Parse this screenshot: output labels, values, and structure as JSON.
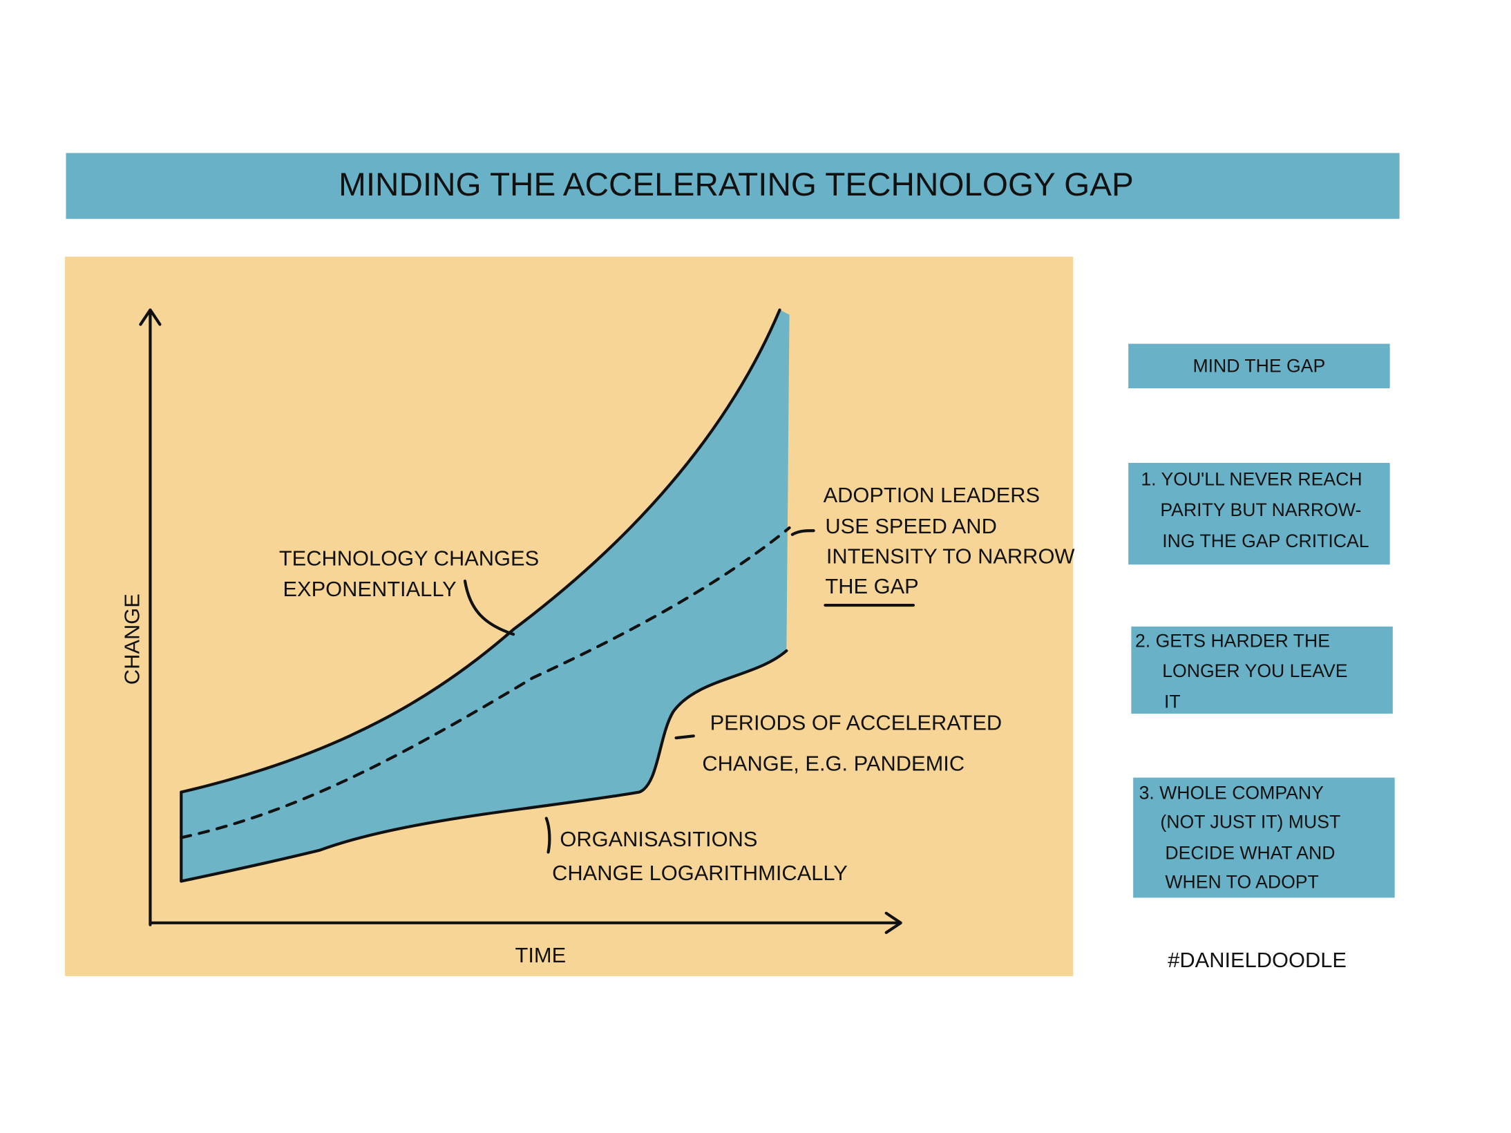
{
  "title": "MINDING THE ACCELERATING TECHNOLOGY GAP",
  "chart": {
    "y_axis_label": "CHANGE",
    "x_axis_label": "TIME",
    "annotations": [
      {
        "lines": [
          "TECHNOLOGY CHANGES",
          "EXPONENTIALLY"
        ]
      },
      {
        "lines": [
          "ADOPTION LEADERS",
          "USE SPEED AND",
          "INTENSITY TO NARROW",
          "THE GAP"
        ]
      },
      {
        "lines": [
          "PERIODS OF ACCELERATED",
          "CHANGE, E.G. PANDEMIC"
        ]
      },
      {
        "lines": [
          "ORGANISASITIONS",
          "CHANGE LOGARITHMICALLY"
        ]
      }
    ]
  },
  "sidebar": {
    "heading": "MIND THE GAP",
    "points": [
      {
        "lines": [
          "1. YOU'LL NEVER REACH",
          "PARITY BUT NARROW-",
          "ING THE GAP CRITICAL"
        ]
      },
      {
        "lines": [
          "2. GETS HARDER THE",
          "LONGER YOU LEAVE",
          "IT"
        ]
      },
      {
        "lines": [
          "3. WHOLE COMPANY",
          "(NOT JUST IT) MUST",
          "DECIDE WHAT AND",
          "WHEN TO ADOPT"
        ]
      }
    ],
    "hashtag": "#DANIELDOODLE"
  }
}
